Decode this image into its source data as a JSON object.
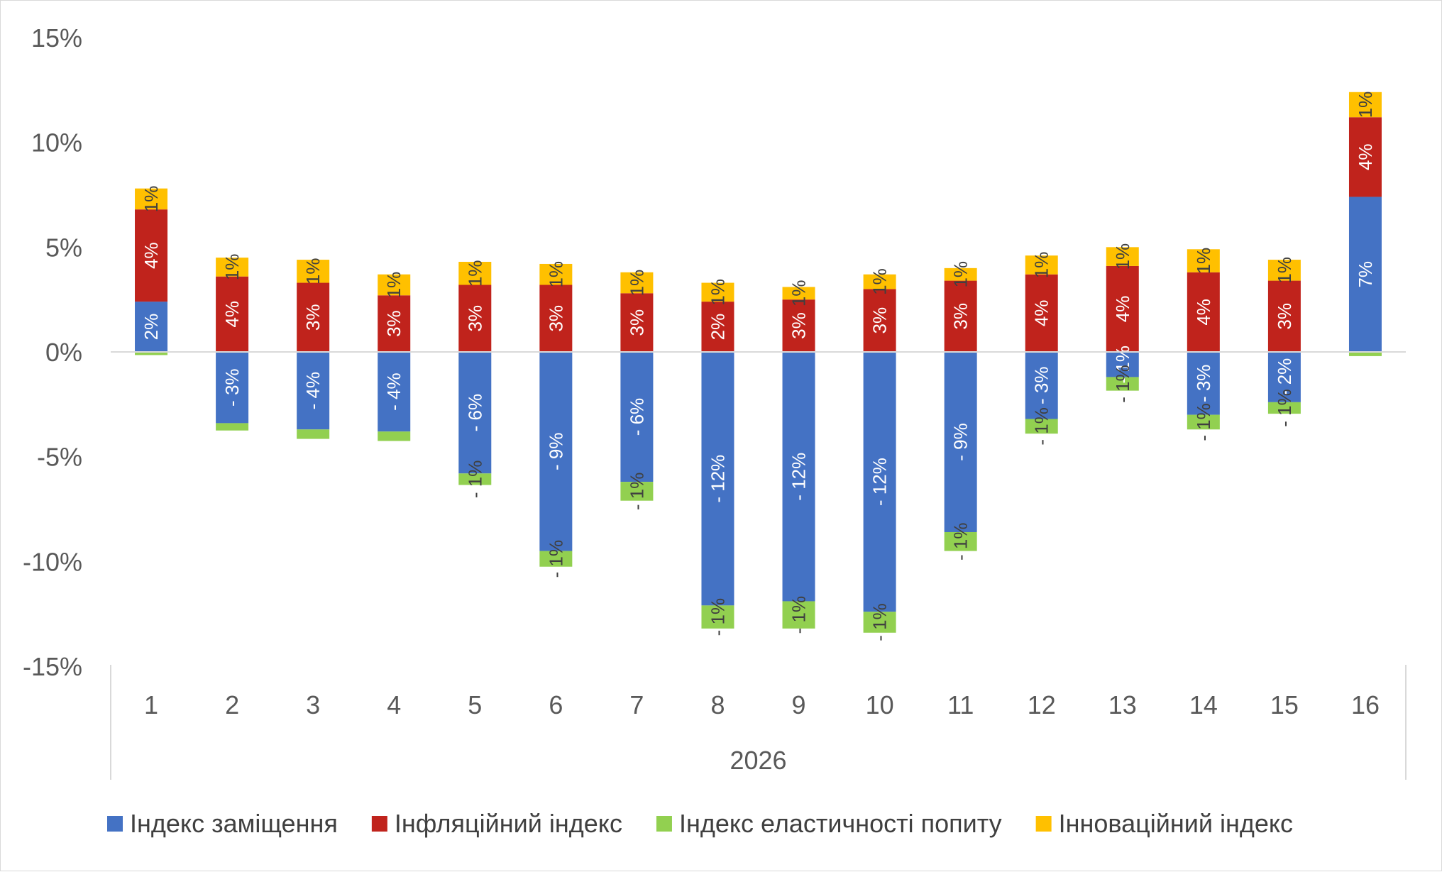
{
  "chart_data": {
    "type": "bar",
    "stacked": true,
    "title": "",
    "xlabel": "",
    "ylabel": "",
    "x_group_label": "2026",
    "categories": [
      "1",
      "2",
      "3",
      "4",
      "5",
      "6",
      "7",
      "8",
      "9",
      "10",
      "11",
      "12",
      "13",
      "14",
      "15",
      "16"
    ],
    "ylim": [
      -15,
      15
    ],
    "yticks": [
      15,
      10,
      5,
      0,
      -5,
      -10,
      -15
    ],
    "ytick_labels": [
      "15%",
      "10%",
      "5%",
      "0%",
      "-5%",
      "-10%",
      "-15%"
    ],
    "grid": false,
    "legend_position": "bottom",
    "series": [
      {
        "name": "Індекс заміщення",
        "color": "#4472C4",
        "label_color": "#ffffff",
        "values": [
          2.4,
          -3.4,
          -3.7,
          -3.8,
          -5.8,
          -9.5,
          -6.2,
          -12.1,
          -11.9,
          -12.4,
          -8.6,
          -3.2,
          -1.2,
          -3.0,
          -2.4,
          7.4
        ],
        "labels": [
          "2%",
          "- 3%",
          "- 4%",
          "- 4%",
          "- 6%",
          "- 9%",
          "- 6%",
          "- 12%",
          "- 12%",
          "- 12%",
          "- 9%",
          "- 3%",
          "- 1%",
          "- 3%",
          "- 2%",
          "7%"
        ]
      },
      {
        "name": "Інфляційний індекс",
        "color": "#C0231C",
        "label_color": "#ffffff",
        "values": [
          4.4,
          3.6,
          3.3,
          2.7,
          3.2,
          3.2,
          2.8,
          2.4,
          2.5,
          3.0,
          3.4,
          3.7,
          4.1,
          3.8,
          3.4,
          3.8
        ],
        "labels": [
          "4%",
          "4%",
          "3%",
          "3%",
          "3%",
          "3%",
          "3%",
          "2%",
          "3%",
          "3%",
          "3%",
          "4%",
          "4%",
          "4%",
          "3%",
          "4%"
        ]
      },
      {
        "name": "Індекс еластичності попиту",
        "color": "#92D050",
        "label_color": "#404040",
        "values": [
          -0.15,
          -0.35,
          -0.45,
          -0.45,
          -0.55,
          -0.75,
          -0.9,
          -1.1,
          -1.3,
          -1.0,
          -0.9,
          -0.7,
          -0.65,
          -0.7,
          -0.55,
          -0.2
        ],
        "labels": [
          "",
          "",
          "",
          "",
          "- 1%",
          "- 1%",
          "- 1%",
          "- 1%",
          "- 1%",
          "- 1%",
          "- 1%",
          "- 1%",
          "- 1%",
          "- 1%",
          "- 1%",
          ""
        ]
      },
      {
        "name": "Інноваційний індекс",
        "color": "#FFC000",
        "label_color": "#404040",
        "values": [
          1.0,
          0.9,
          1.1,
          1.0,
          1.1,
          1.0,
          1.0,
          0.9,
          0.6,
          0.7,
          0.6,
          0.9,
          0.9,
          1.1,
          1.0,
          1.2
        ],
        "labels": [
          "1%",
          "1%",
          "1%",
          "1%",
          "1%",
          "1%",
          "1%",
          "1%",
          "1%",
          "1%",
          "1%",
          "1%",
          "1%",
          "1%",
          "1%",
          "1%"
        ]
      }
    ]
  }
}
